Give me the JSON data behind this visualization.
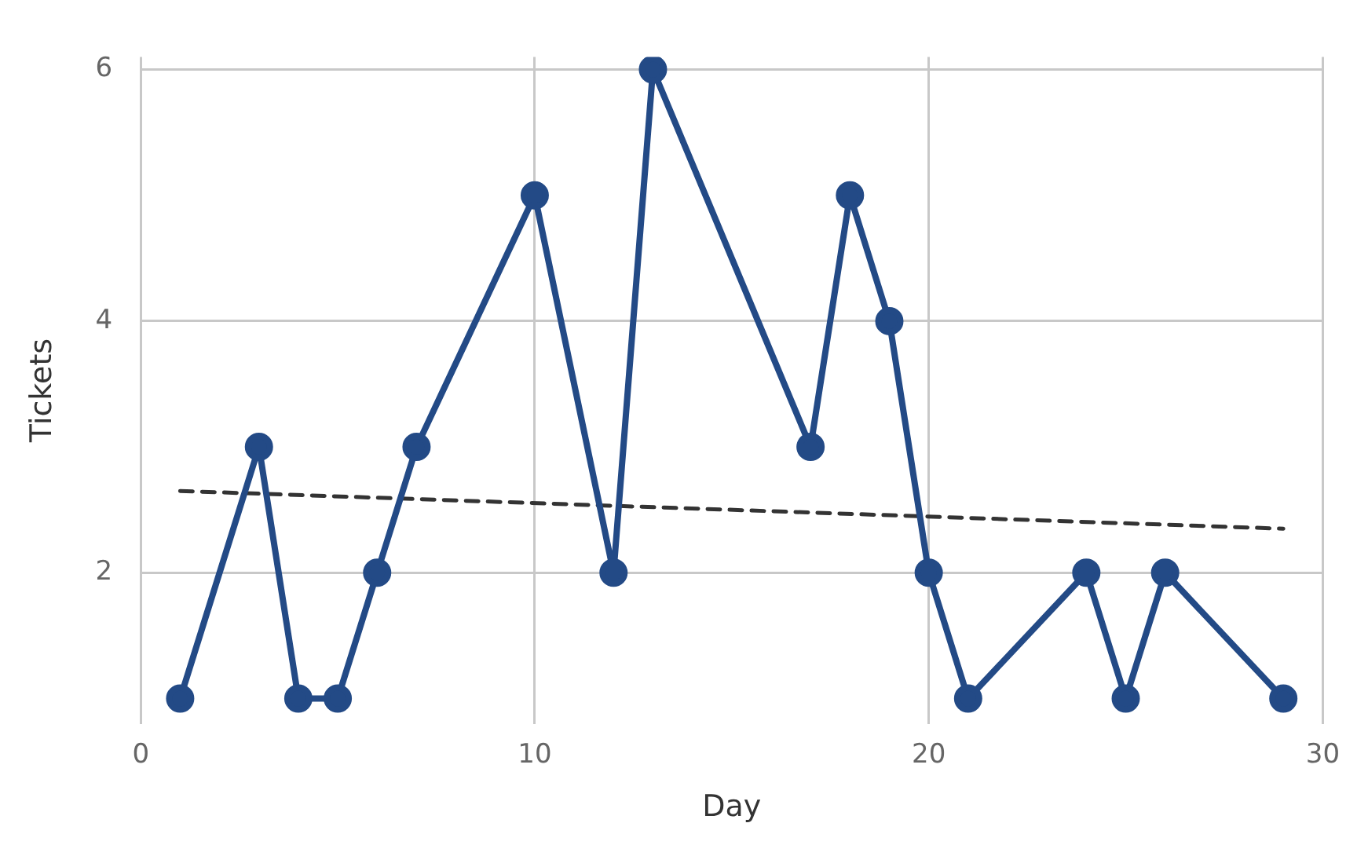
{
  "chart_data": {
    "type": "line",
    "xlabel": "Day",
    "ylabel": "Tickets",
    "xlim": [
      0,
      30
    ],
    "xticks": [
      0,
      10,
      20,
      30
    ],
    "ylim": [
      0.8,
      6.1
    ],
    "yticks": [
      2,
      4,
      6
    ],
    "grid": true,
    "series": [
      {
        "color": "#234a86",
        "marker": "circle",
        "line_style": "solid",
        "x": [
          1,
          3,
          4,
          5,
          6,
          7,
          10,
          12,
          13,
          17,
          18,
          19,
          20,
          21,
          24,
          25,
          26,
          29
        ],
        "values": [
          1,
          3,
          1,
          1,
          2,
          3,
          5,
          2,
          6,
          3,
          5,
          4,
          2,
          1,
          2,
          1,
          2,
          1
        ]
      },
      {
        "type": "line",
        "color": "#333333",
        "marker": "none",
        "line_style": "dashed",
        "x": [
          1,
          29
        ],
        "values": [
          2.65,
          2.35
        ]
      }
    ]
  }
}
